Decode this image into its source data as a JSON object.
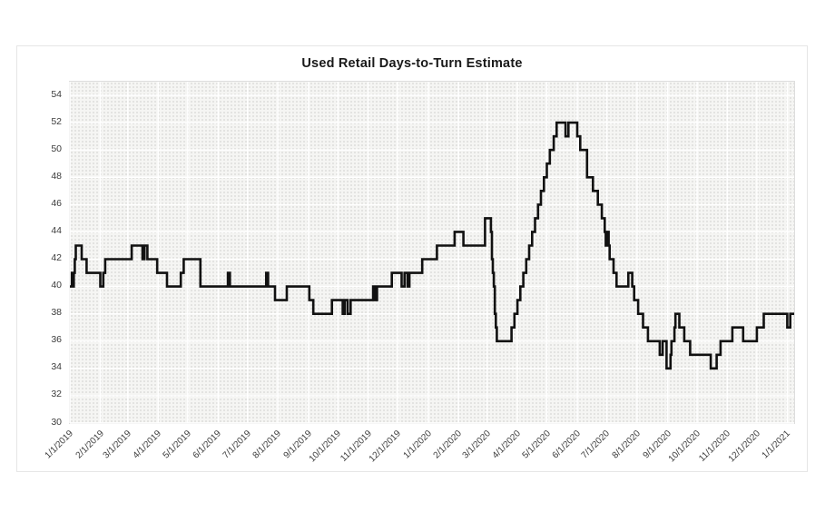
{
  "chart_data": {
    "type": "line",
    "subtype": "step",
    "title": "Used Retail Days-to-Turn Estimate",
    "xlabel": "",
    "ylabel": "",
    "ylim": [
      30,
      54
    ],
    "y_axis_draw_top": 55,
    "y_ticks": [
      30,
      32,
      34,
      36,
      38,
      40,
      42,
      44,
      46,
      48,
      50,
      52,
      54
    ],
    "x_domain_days": [
      0,
      738
    ],
    "x_ticks": [
      {
        "day": 0,
        "label": "1/1/2019"
      },
      {
        "day": 31,
        "label": "2/1/2019"
      },
      {
        "day": 59,
        "label": "3/1/2019"
      },
      {
        "day": 90,
        "label": "4/1/2019"
      },
      {
        "day": 120,
        "label": "5/1/2019"
      },
      {
        "day": 151,
        "label": "6/1/2019"
      },
      {
        "day": 181,
        "label": "7/1/2019"
      },
      {
        "day": 212,
        "label": "8/1/2019"
      },
      {
        "day": 243,
        "label": "9/1/2019"
      },
      {
        "day": 273,
        "label": "10/1/2019"
      },
      {
        "day": 304,
        "label": "11/1/2019"
      },
      {
        "day": 334,
        "label": "12/1/2019"
      },
      {
        "day": 365,
        "label": "1/1/2020"
      },
      {
        "day": 396,
        "label": "2/1/2020"
      },
      {
        "day": 425,
        "label": "3/1/2020"
      },
      {
        "day": 456,
        "label": "4/1/2020"
      },
      {
        "day": 486,
        "label": "5/1/2020"
      },
      {
        "day": 517,
        "label": "6/1/2020"
      },
      {
        "day": 547,
        "label": "7/1/2020"
      },
      {
        "day": 578,
        "label": "8/1/2020"
      },
      {
        "day": 609,
        "label": "9/1/2020"
      },
      {
        "day": 639,
        "label": "10/1/2020"
      },
      {
        "day": 670,
        "label": "11/1/2020"
      },
      {
        "day": 700,
        "label": "12/1/2020"
      },
      {
        "day": 731,
        "label": "1/1/2021"
      }
    ],
    "grid": {
      "horizontal": true,
      "vertical": true,
      "color": "#ffffff"
    },
    "legend": "none",
    "plot_background": "#f5f5f3",
    "line_color": "#111111",
    "series": [
      {
        "name": "Used Retail Days-to-Turn Estimate",
        "step": "after",
        "points": [
          [
            0,
            40
          ],
          [
            2,
            41
          ],
          [
            3,
            40
          ],
          [
            4,
            41
          ],
          [
            5,
            42
          ],
          [
            6,
            43
          ],
          [
            12,
            42
          ],
          [
            17,
            41
          ],
          [
            31,
            40
          ],
          [
            34,
            41
          ],
          [
            36,
            42
          ],
          [
            63,
            43
          ],
          [
            74,
            42
          ],
          [
            76,
            43
          ],
          [
            79,
            42
          ],
          [
            89,
            41
          ],
          [
            99,
            40
          ],
          [
            113,
            41
          ],
          [
            116,
            42
          ],
          [
            133,
            40
          ],
          [
            161,
            41
          ],
          [
            163,
            40
          ],
          [
            200,
            41
          ],
          [
            202,
            40
          ],
          [
            209,
            39
          ],
          [
            221,
            40
          ],
          [
            244,
            39
          ],
          [
            248,
            38
          ],
          [
            267,
            39
          ],
          [
            278,
            38
          ],
          [
            280,
            39
          ],
          [
            283,
            38
          ],
          [
            286,
            39
          ],
          [
            309,
            40
          ],
          [
            311,
            39
          ],
          [
            313,
            40
          ],
          [
            328,
            41
          ],
          [
            338,
            40
          ],
          [
            341,
            41
          ],
          [
            344,
            40
          ],
          [
            346,
            41
          ],
          [
            359,
            42
          ],
          [
            374,
            43
          ],
          [
            392,
            44
          ],
          [
            401,
            43
          ],
          [
            423,
            45
          ],
          [
            429,
            44
          ],
          [
            430,
            42
          ],
          [
            431,
            41
          ],
          [
            432,
            40
          ],
          [
            433,
            38
          ],
          [
            434,
            37
          ],
          [
            435,
            36
          ],
          [
            450,
            37
          ],
          [
            453,
            38
          ],
          [
            456,
            39
          ],
          [
            459,
            40
          ],
          [
            462,
            41
          ],
          [
            465,
            42
          ],
          [
            468,
            43
          ],
          [
            471,
            44
          ],
          [
            474,
            45
          ],
          [
            477,
            46
          ],
          [
            480,
            47
          ],
          [
            483,
            48
          ],
          [
            486,
            49
          ],
          [
            489,
            50
          ],
          [
            493,
            51
          ],
          [
            496,
            52
          ],
          [
            505,
            51
          ],
          [
            508,
            52
          ],
          [
            517,
            51
          ],
          [
            520,
            50
          ],
          [
            527,
            48
          ],
          [
            533,
            47
          ],
          [
            538,
            46
          ],
          [
            542,
            45
          ],
          [
            545,
            44
          ],
          [
            546,
            43
          ],
          [
            547,
            44
          ],
          [
            549,
            43
          ],
          [
            550,
            42
          ],
          [
            554,
            41
          ],
          [
            557,
            40
          ],
          [
            569,
            41
          ],
          [
            573,
            40
          ],
          [
            575,
            39
          ],
          [
            579,
            38
          ],
          [
            584,
            37
          ],
          [
            589,
            36
          ],
          [
            601,
            35
          ],
          [
            604,
            36
          ],
          [
            608,
            34
          ],
          [
            612,
            35
          ],
          [
            613,
            36
          ],
          [
            616,
            37
          ],
          [
            617,
            38
          ],
          [
            621,
            37
          ],
          [
            626,
            36
          ],
          [
            632,
            35
          ],
          [
            653,
            34
          ],
          [
            659,
            35
          ],
          [
            663,
            36
          ],
          [
            675,
            37
          ],
          [
            686,
            36
          ],
          [
            700,
            37
          ],
          [
            707,
            38
          ],
          [
            731,
            37
          ],
          [
            734,
            38
          ],
          [
            738,
            38
          ]
        ]
      }
    ]
  }
}
